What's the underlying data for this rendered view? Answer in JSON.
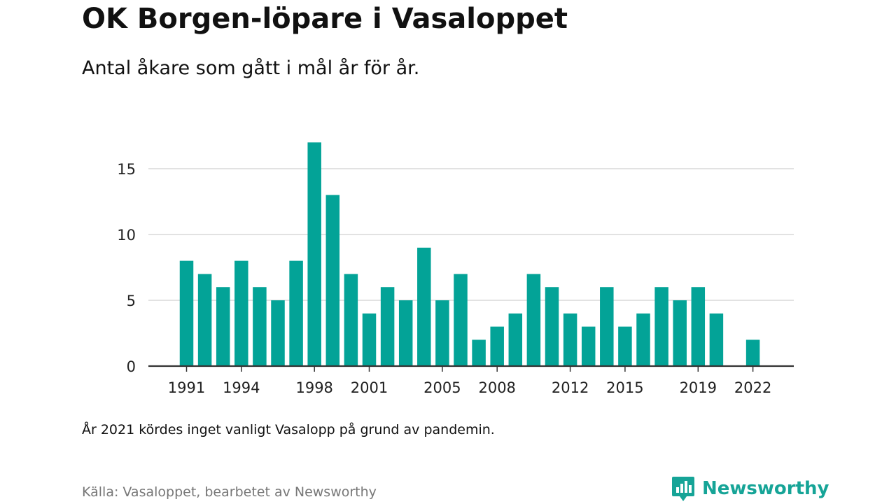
{
  "title": "OK Borgen-löpare i Vasaloppet",
  "subtitle": "Antal åkare som gått i mål år för år.",
  "note": "År 2021 kördes inget vanligt Vasalopp på grund av pandemin.",
  "source": "Källa: Vasaloppet, bearbetet av Newsworthy",
  "brand": {
    "name": "Newsworthy",
    "icon": "newsworthy-logo-icon"
  },
  "colors": {
    "bar": "#03a397",
    "grid": "#d9d9d9",
    "axis": "#333333",
    "brand": "#16a497"
  },
  "chart_data": {
    "type": "bar",
    "categories": [
      1991,
      1992,
      1993,
      1994,
      1995,
      1996,
      1997,
      1998,
      1999,
      2000,
      2001,
      2002,
      2003,
      2004,
      2005,
      2006,
      2007,
      2008,
      2009,
      2010,
      2011,
      2012,
      2013,
      2014,
      2015,
      2016,
      2017,
      2018,
      2019,
      2020,
      2021,
      2022
    ],
    "values": [
      8,
      7,
      6,
      8,
      6,
      5,
      8,
      17,
      13,
      7,
      4,
      6,
      5,
      9,
      5,
      7,
      2,
      3,
      4,
      7,
      6,
      4,
      3,
      6,
      3,
      4,
      6,
      5,
      6,
      4,
      null,
      2
    ],
    "x_tick_labels": [
      "1991",
      "1994",
      "1998",
      "2001",
      "2005",
      "2008",
      "2012",
      "2015",
      "2019",
      "2022"
    ],
    "y_ticks": [
      0,
      5,
      10,
      15
    ],
    "ylim": [
      0,
      17
    ],
    "grid": true
  }
}
